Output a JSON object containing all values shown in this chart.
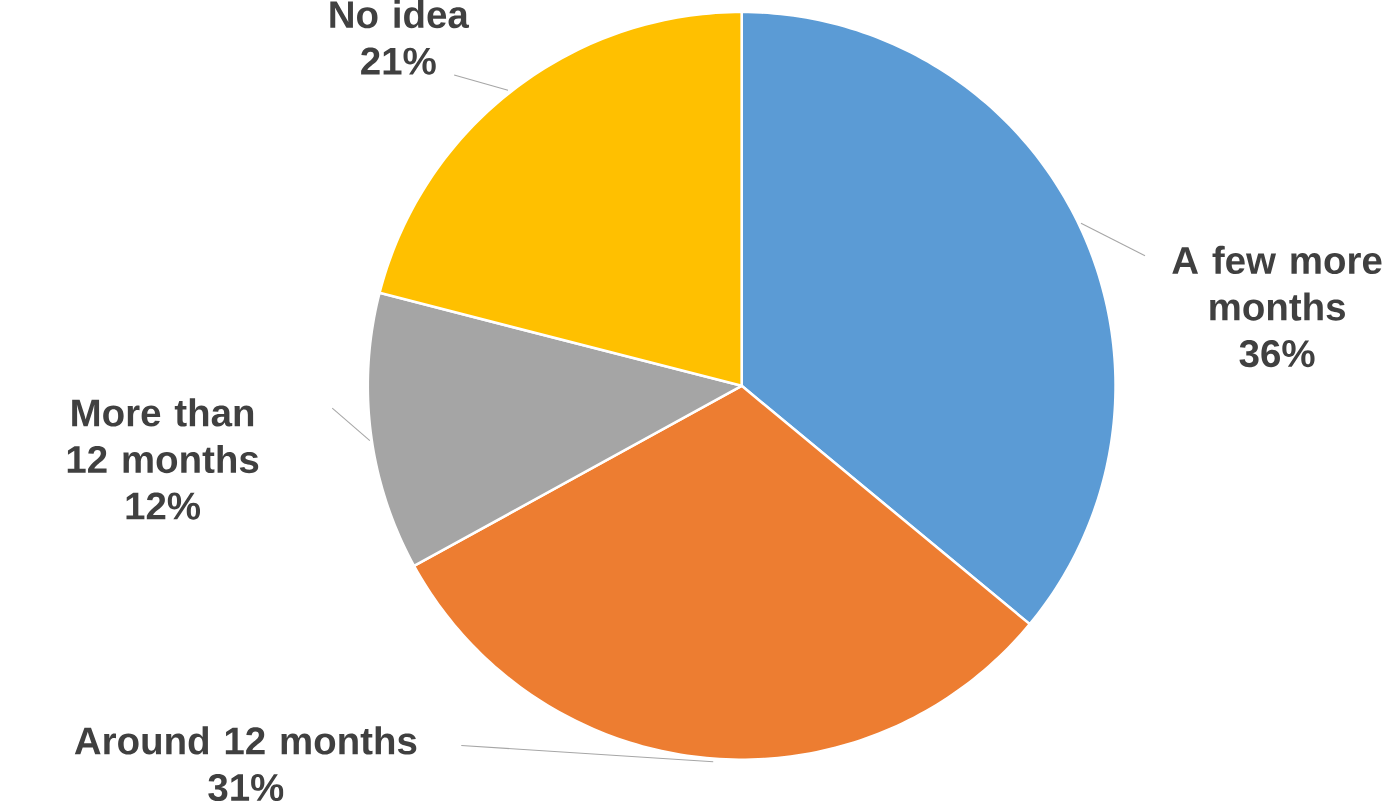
{
  "chart_data": {
    "type": "pie",
    "categories": [
      "A few more months",
      "Around 12 months",
      "More than 12 months",
      "No idea"
    ],
    "values": [
      36,
      31,
      12,
      21
    ],
    "value_labels": [
      "36%",
      "31%",
      "12%",
      "21%"
    ],
    "colors": [
      "#5b9bd5",
      "#ed7d31",
      "#a5a5a5",
      "#ffc000"
    ]
  }
}
